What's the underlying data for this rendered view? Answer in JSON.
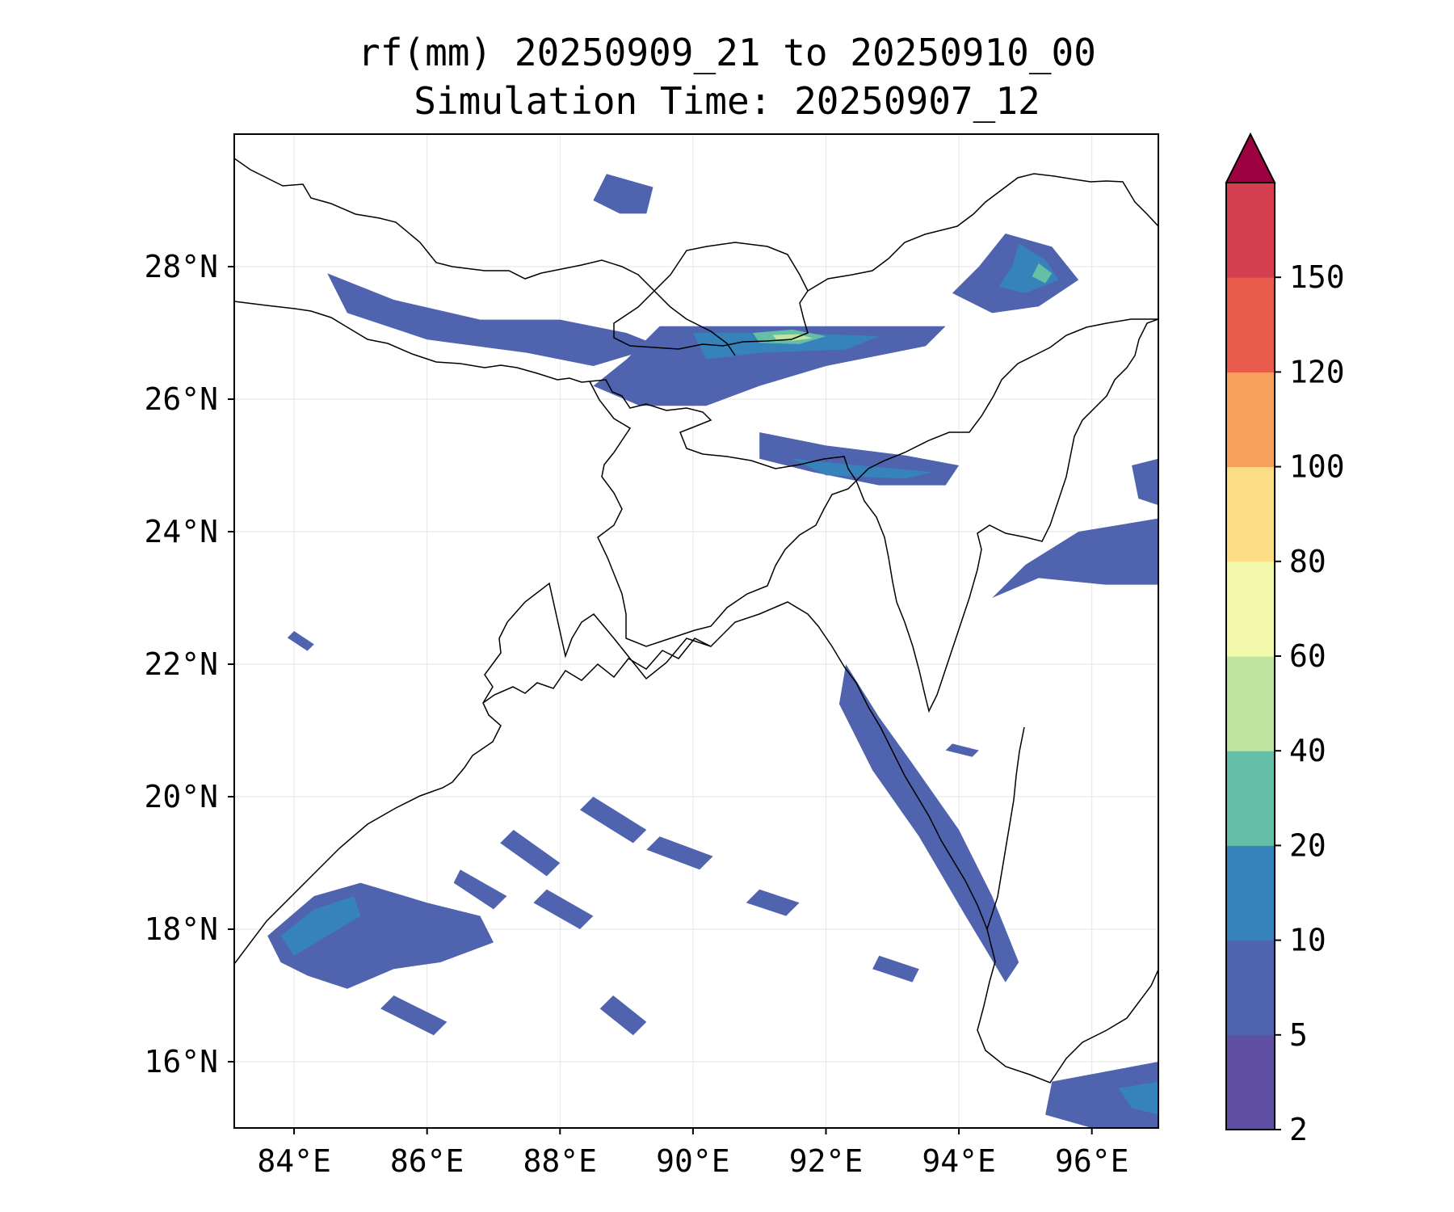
{
  "title": {
    "line1": "rf(mm) 20250909_21 to 20250910_00",
    "line2": "Simulation Time: 20250907_12"
  },
  "map": {
    "extent": {
      "lon": [
        83.1,
        97.0
      ],
      "lat": [
        15.0,
        30.0
      ]
    },
    "lon_ticks": [
      84,
      86,
      88,
      90,
      92,
      94,
      96
    ],
    "lat_ticks": [
      16,
      18,
      20,
      22,
      24,
      26,
      28
    ],
    "lon_tick_labels": [
      "84°E",
      "86°E",
      "88°E",
      "90°E",
      "92°E",
      "94°E",
      "96°E"
    ],
    "lat_tick_labels": [
      "16°N",
      "18°N",
      "20°N",
      "22°N",
      "24°N",
      "26°N",
      "28°N"
    ],
    "gridlines": true
  },
  "colorbar": {
    "levels": [
      "2",
      "5",
      "10",
      "20",
      "40",
      "60",
      "80",
      "100",
      "120",
      "150"
    ],
    "colors": [
      "#5e4fa2",
      "#4f63ae",
      "#3683bb",
      "#64bfa6",
      "#bee4a0",
      "#f3f9ab",
      "#fbdd86",
      "#f7a05b",
      "#e85b4a",
      "#d53e4f"
    ],
    "extend_color": "#9e0142",
    "extend": "max"
  },
  "rain_regions": [
    {
      "name": "himalaya-foothills-west",
      "points": [
        [
          84.5,
          27.9
        ],
        [
          85.5,
          27.5
        ],
        [
          86.8,
          27.2
        ],
        [
          88.0,
          27.2
        ],
        [
          89.0,
          27.0
        ],
        [
          89.5,
          26.8
        ],
        [
          88.5,
          26.5
        ],
        [
          87.5,
          26.7
        ],
        [
          86.0,
          26.9
        ],
        [
          84.8,
          27.3
        ]
      ],
      "level": 1
    },
    {
      "name": "bhutan-assam-band",
      "points": [
        [
          89.5,
          27.1
        ],
        [
          91.0,
          27.1
        ],
        [
          92.5,
          27.1
        ],
        [
          93.8,
          27.1
        ],
        [
          93.5,
          26.8
        ],
        [
          92.0,
          26.5
        ],
        [
          91.0,
          26.2
        ],
        [
          90.2,
          25.9
        ],
        [
          89.2,
          25.9
        ],
        [
          88.5,
          26.2
        ],
        [
          89.0,
          26.6
        ]
      ],
      "level": 1
    },
    {
      "name": "bhutan-assam-core",
      "points": [
        [
          90.0,
          27.0
        ],
        [
          91.5,
          27.0
        ],
        [
          92.8,
          26.95
        ],
        [
          92.3,
          26.75
        ],
        [
          91.0,
          26.7
        ],
        [
          90.2,
          26.6
        ]
      ],
      "level": 2
    },
    {
      "name": "bhutan-assam-peak",
      "points": [
        [
          90.9,
          27.0
        ],
        [
          91.5,
          27.05
        ],
        [
          92.0,
          26.95
        ],
        [
          91.6,
          26.83
        ],
        [
          91.0,
          26.85
        ]
      ],
      "level": 3
    },
    {
      "name": "bhutan-peak-inner",
      "points": [
        [
          91.2,
          26.97
        ],
        [
          91.6,
          26.98
        ],
        [
          91.8,
          26.92
        ],
        [
          91.5,
          26.88
        ],
        [
          91.25,
          26.9
        ]
      ],
      "level": 4
    },
    {
      "name": "meghalaya-band",
      "points": [
        [
          91.0,
          25.5
        ],
        [
          92.0,
          25.3
        ],
        [
          93.2,
          25.15
        ],
        [
          94.0,
          25.0
        ],
        [
          93.8,
          24.7
        ],
        [
          92.8,
          24.7
        ],
        [
          91.8,
          24.9
        ],
        [
          91.0,
          25.1
        ]
      ],
      "level": 1
    },
    {
      "name": "meghalaya-core",
      "points": [
        [
          91.5,
          25.1
        ],
        [
          92.5,
          25.0
        ],
        [
          93.6,
          24.9
        ],
        [
          93.2,
          24.8
        ],
        [
          92.0,
          24.85
        ]
      ],
      "level": 2
    },
    {
      "name": "arunachal-east",
      "points": [
        [
          94.7,
          28.5
        ],
        [
          95.4,
          28.3
        ],
        [
          95.8,
          27.8
        ],
        [
          95.2,
          27.4
        ],
        [
          94.5,
          27.3
        ],
        [
          93.9,
          27.6
        ],
        [
          94.3,
          28.0
        ]
      ],
      "level": 1
    },
    {
      "name": "arunachal-east-core",
      "points": [
        [
          94.9,
          28.35
        ],
        [
          95.3,
          28.1
        ],
        [
          95.5,
          27.8
        ],
        [
          95.0,
          27.6
        ],
        [
          94.6,
          27.7
        ],
        [
          94.8,
          28.0
        ]
      ],
      "level": 2
    },
    {
      "name": "arunachal-east-peak",
      "points": [
        [
          95.2,
          28.05
        ],
        [
          95.4,
          27.9
        ],
        [
          95.3,
          27.75
        ],
        [
          95.1,
          27.85
        ]
      ],
      "level": 3
    },
    {
      "name": "tibet-cell",
      "points": [
        [
          88.7,
          29.4
        ],
        [
          89.4,
          29.2
        ],
        [
          89.3,
          28.8
        ],
        [
          88.9,
          28.8
        ],
        [
          88.5,
          29.0
        ]
      ],
      "level": 1
    },
    {
      "name": "myanmar-west",
      "points": [
        [
          95.8,
          24.0
        ],
        [
          97.0,
          24.2
        ],
        [
          97.0,
          23.2
        ],
        [
          96.2,
          23.2
        ],
        [
          95.2,
          23.3
        ],
        [
          94.5,
          23.0
        ],
        [
          95.0,
          23.5
        ]
      ],
      "level": 1
    },
    {
      "name": "myanmar-east-edge",
      "points": [
        [
          96.6,
          25.0
        ],
        [
          97.0,
          25.1
        ],
        [
          97.0,
          24.4
        ],
        [
          96.7,
          24.5
        ]
      ],
      "level": 1
    },
    {
      "name": "arakan-coast",
      "points": [
        [
          92.3,
          22.0
        ],
        [
          92.8,
          21.2
        ],
        [
          93.3,
          20.5
        ],
        [
          94.0,
          19.5
        ],
        [
          94.5,
          18.5
        ],
        [
          94.9,
          17.5
        ],
        [
          94.7,
          17.2
        ],
        [
          94.1,
          18.2
        ],
        [
          93.4,
          19.4
        ],
        [
          92.7,
          20.4
        ],
        [
          92.2,
          21.4
        ]
      ],
      "level": 1
    },
    {
      "name": "andhra-odisha-coast",
      "points": [
        [
          83.6,
          17.9
        ],
        [
          84.3,
          18.5
        ],
        [
          85.0,
          18.7
        ],
        [
          86.0,
          18.4
        ],
        [
          86.8,
          18.2
        ],
        [
          87.0,
          17.8
        ],
        [
          86.2,
          17.5
        ],
        [
          85.5,
          17.4
        ],
        [
          84.8,
          17.1
        ],
        [
          84.2,
          17.3
        ],
        [
          83.8,
          17.5
        ]
      ],
      "level": 1
    },
    {
      "name": "andhra-coast-core",
      "points": [
        [
          83.8,
          17.9
        ],
        [
          84.3,
          18.3
        ],
        [
          84.9,
          18.5
        ],
        [
          85.0,
          18.2
        ],
        [
          84.5,
          17.9
        ],
        [
          84.0,
          17.6
        ]
      ],
      "level": 2
    },
    {
      "name": "bay-streak-1",
      "points": [
        [
          86.5,
          18.9
        ],
        [
          87.2,
          18.5
        ],
        [
          87.0,
          18.3
        ],
        [
          86.4,
          18.7
        ]
      ],
      "level": 1
    },
    {
      "name": "bay-streak-2",
      "points": [
        [
          87.3,
          19.5
        ],
        [
          88.0,
          19.0
        ],
        [
          87.8,
          18.8
        ],
        [
          87.1,
          19.3
        ]
      ],
      "level": 1
    },
    {
      "name": "bay-streak-3",
      "points": [
        [
          88.5,
          20.0
        ],
        [
          89.3,
          19.5
        ],
        [
          89.1,
          19.3
        ],
        [
          88.3,
          19.8
        ]
      ],
      "level": 1
    },
    {
      "name": "bay-streak-4",
      "points": [
        [
          87.8,
          18.6
        ],
        [
          88.5,
          18.2
        ],
        [
          88.3,
          18.0
        ],
        [
          87.6,
          18.4
        ]
      ],
      "level": 1
    },
    {
      "name": "bay-streak-5",
      "points": [
        [
          89.5,
          19.4
        ],
        [
          90.3,
          19.1
        ],
        [
          90.1,
          18.9
        ],
        [
          89.3,
          19.2
        ]
      ],
      "level": 1
    },
    {
      "name": "bay-streak-6",
      "points": [
        [
          85.5,
          17.0
        ],
        [
          86.3,
          16.6
        ],
        [
          86.1,
          16.4
        ],
        [
          85.3,
          16.8
        ]
      ],
      "level": 1
    },
    {
      "name": "bay-streak-7",
      "points": [
        [
          88.8,
          17.0
        ],
        [
          89.3,
          16.6
        ],
        [
          89.1,
          16.4
        ],
        [
          88.6,
          16.8
        ]
      ],
      "level": 1
    },
    {
      "name": "bay-streak-8",
      "points": [
        [
          91.0,
          18.6
        ],
        [
          91.6,
          18.4
        ],
        [
          91.4,
          18.2
        ],
        [
          90.8,
          18.4
        ]
      ],
      "level": 1
    },
    {
      "name": "bay-streak-9",
      "points": [
        [
          92.8,
          17.6
        ],
        [
          93.4,
          17.4
        ],
        [
          93.3,
          17.2
        ],
        [
          92.7,
          17.4
        ]
      ],
      "level": 1
    },
    {
      "name": "andaman-sw",
      "points": [
        [
          95.4,
          15.7
        ],
        [
          97.0,
          16.0
        ],
        [
          97.0,
          15.0
        ],
        [
          96.0,
          15.0
        ],
        [
          95.3,
          15.2
        ]
      ],
      "level": 1
    },
    {
      "name": "andaman-core",
      "points": [
        [
          96.4,
          15.6
        ],
        [
          97.0,
          15.7
        ],
        [
          97.0,
          15.2
        ],
        [
          96.6,
          15.3
        ]
      ],
      "level": 2
    },
    {
      "name": "bay-streak-10",
      "points": [
        [
          93.9,
          20.8
        ],
        [
          94.3,
          20.7
        ],
        [
          94.2,
          20.6
        ],
        [
          93.8,
          20.7
        ]
      ],
      "level": 1
    },
    {
      "name": "bay-streak-11",
      "points": [
        [
          84.0,
          22.5
        ],
        [
          84.3,
          22.3
        ],
        [
          84.2,
          22.2
        ],
        [
          83.9,
          22.4
        ]
      ],
      "level": 1
    }
  ]
}
